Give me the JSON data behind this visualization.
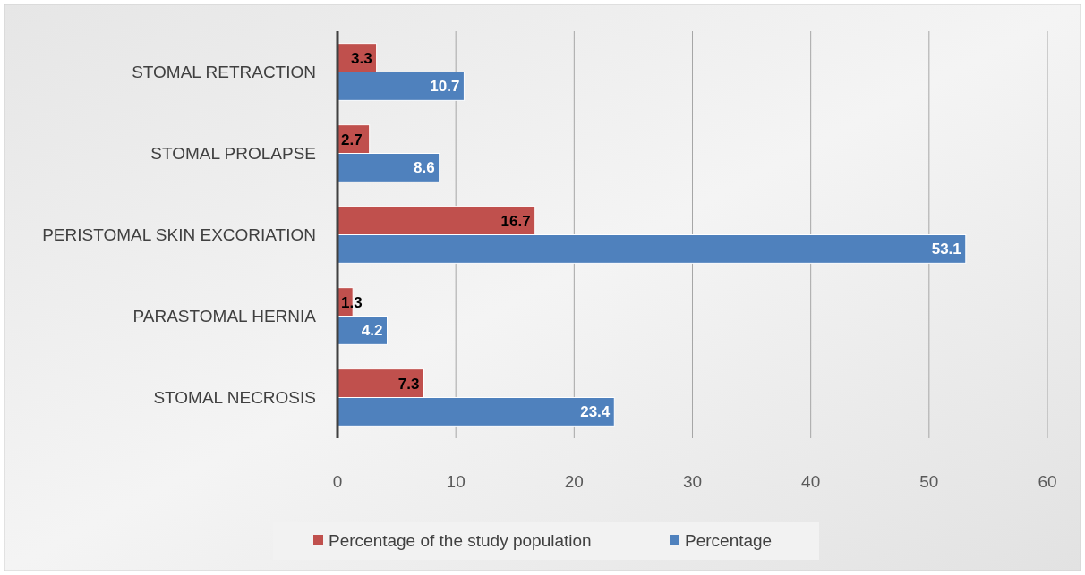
{
  "chart_data": {
    "type": "bar",
    "orientation": "horizontal",
    "categories": [
      "STOMAL RETRACTION",
      "STOMAL PROLAPSE",
      "PERISTOMAL SKIN EXCORIATION",
      "PARASTOMAL HERNIA",
      "STOMAL NECROSIS"
    ],
    "series": [
      {
        "name": "Percentage of the study population",
        "color": "#c0504d",
        "values": [
          3.3,
          2.7,
          16.7,
          1.3,
          7.3
        ]
      },
      {
        "name": "Percentage",
        "color": "#4f81bd",
        "values": [
          10.7,
          8.6,
          53.1,
          4.2,
          23.4
        ]
      }
    ],
    "xlim": [
      0,
      60
    ],
    "xticks": [
      0,
      10,
      20,
      30,
      40,
      50,
      60
    ],
    "grid": "x",
    "legend": "bottom",
    "data_labels": true
  }
}
